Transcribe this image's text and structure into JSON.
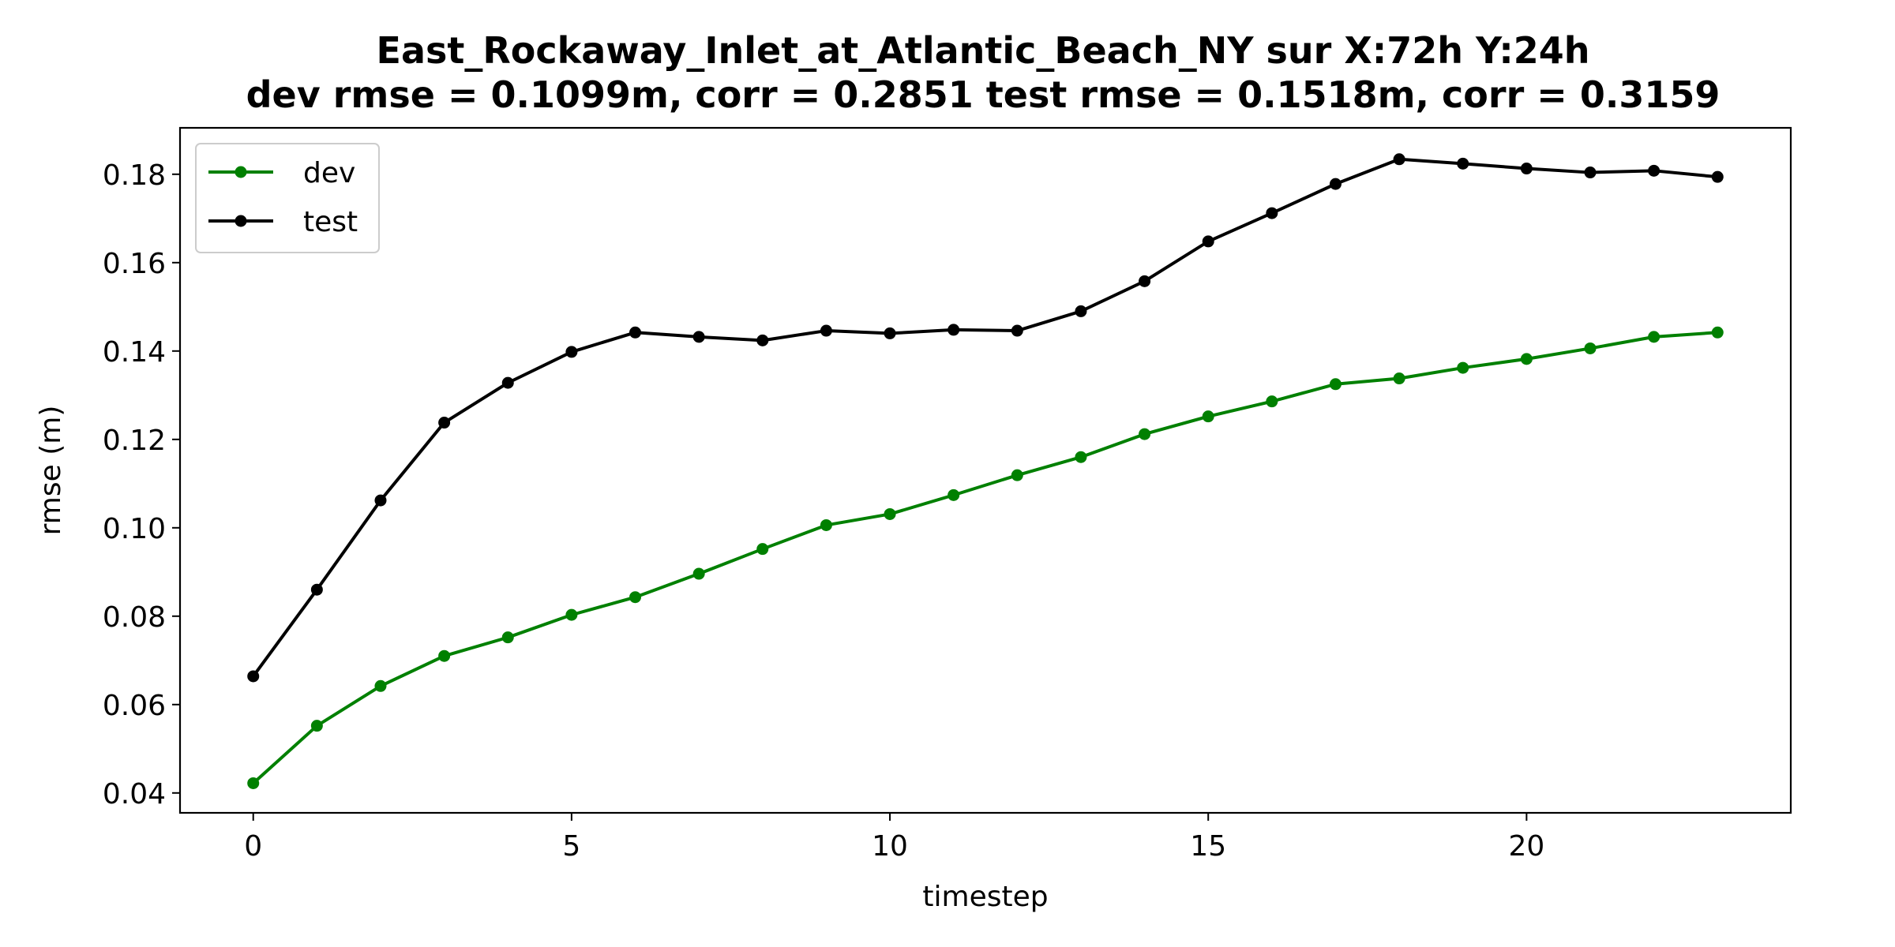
{
  "chart_data": {
    "type": "line",
    "title": "East_Rockaway_Inlet_at_Atlantic_Beach_NY   sur   X:72h   Y:24h",
    "subtitle": "dev rmse = 0.1099m, corr = 0.2851   test rmse = 0.1518m, corr = 0.3159",
    "xlabel": "timestep",
    "ylabel": "rmse (m)",
    "xlim": [
      -1.15,
      24.15
    ],
    "ylim": [
      0.0355,
      0.1905
    ],
    "xticks": [
      0,
      5,
      10,
      15,
      20
    ],
    "yticks": [
      0.04,
      0.06,
      0.08,
      0.1,
      0.12,
      0.14,
      0.16,
      0.18
    ],
    "ytick_labels": [
      "0.04",
      "0.06",
      "0.08",
      "0.10",
      "0.12",
      "0.14",
      "0.16",
      "0.18"
    ],
    "legend_position": "upper-left",
    "x": [
      0,
      1,
      2,
      3,
      4,
      5,
      6,
      7,
      8,
      9,
      10,
      11,
      12,
      13,
      14,
      15,
      16,
      17,
      18,
      19,
      20,
      21,
      22,
      23
    ],
    "series": [
      {
        "name": "dev",
        "color": "#008000",
        "values": [
          0.0422,
          0.0552,
          0.0642,
          0.071,
          0.0752,
          0.0803,
          0.0843,
          0.0896,
          0.0952,
          0.1006,
          0.1031,
          0.1074,
          0.1119,
          0.116,
          0.1212,
          0.1252,
          0.1286,
          0.1325,
          0.1338,
          0.1362,
          0.1382,
          0.1406,
          0.1432,
          0.1442
        ]
      },
      {
        "name": "test",
        "color": "#000000",
        "values": [
          0.0664,
          0.086,
          0.1062,
          0.1238,
          0.1328,
          0.1398,
          0.1442,
          0.1432,
          0.1424,
          0.1446,
          0.144,
          0.1448,
          0.1446,
          0.149,
          0.1558,
          0.1648,
          0.1712,
          0.1778,
          0.1834,
          0.1824,
          0.1813,
          0.1804,
          0.1808,
          0.1794
        ]
      }
    ]
  }
}
